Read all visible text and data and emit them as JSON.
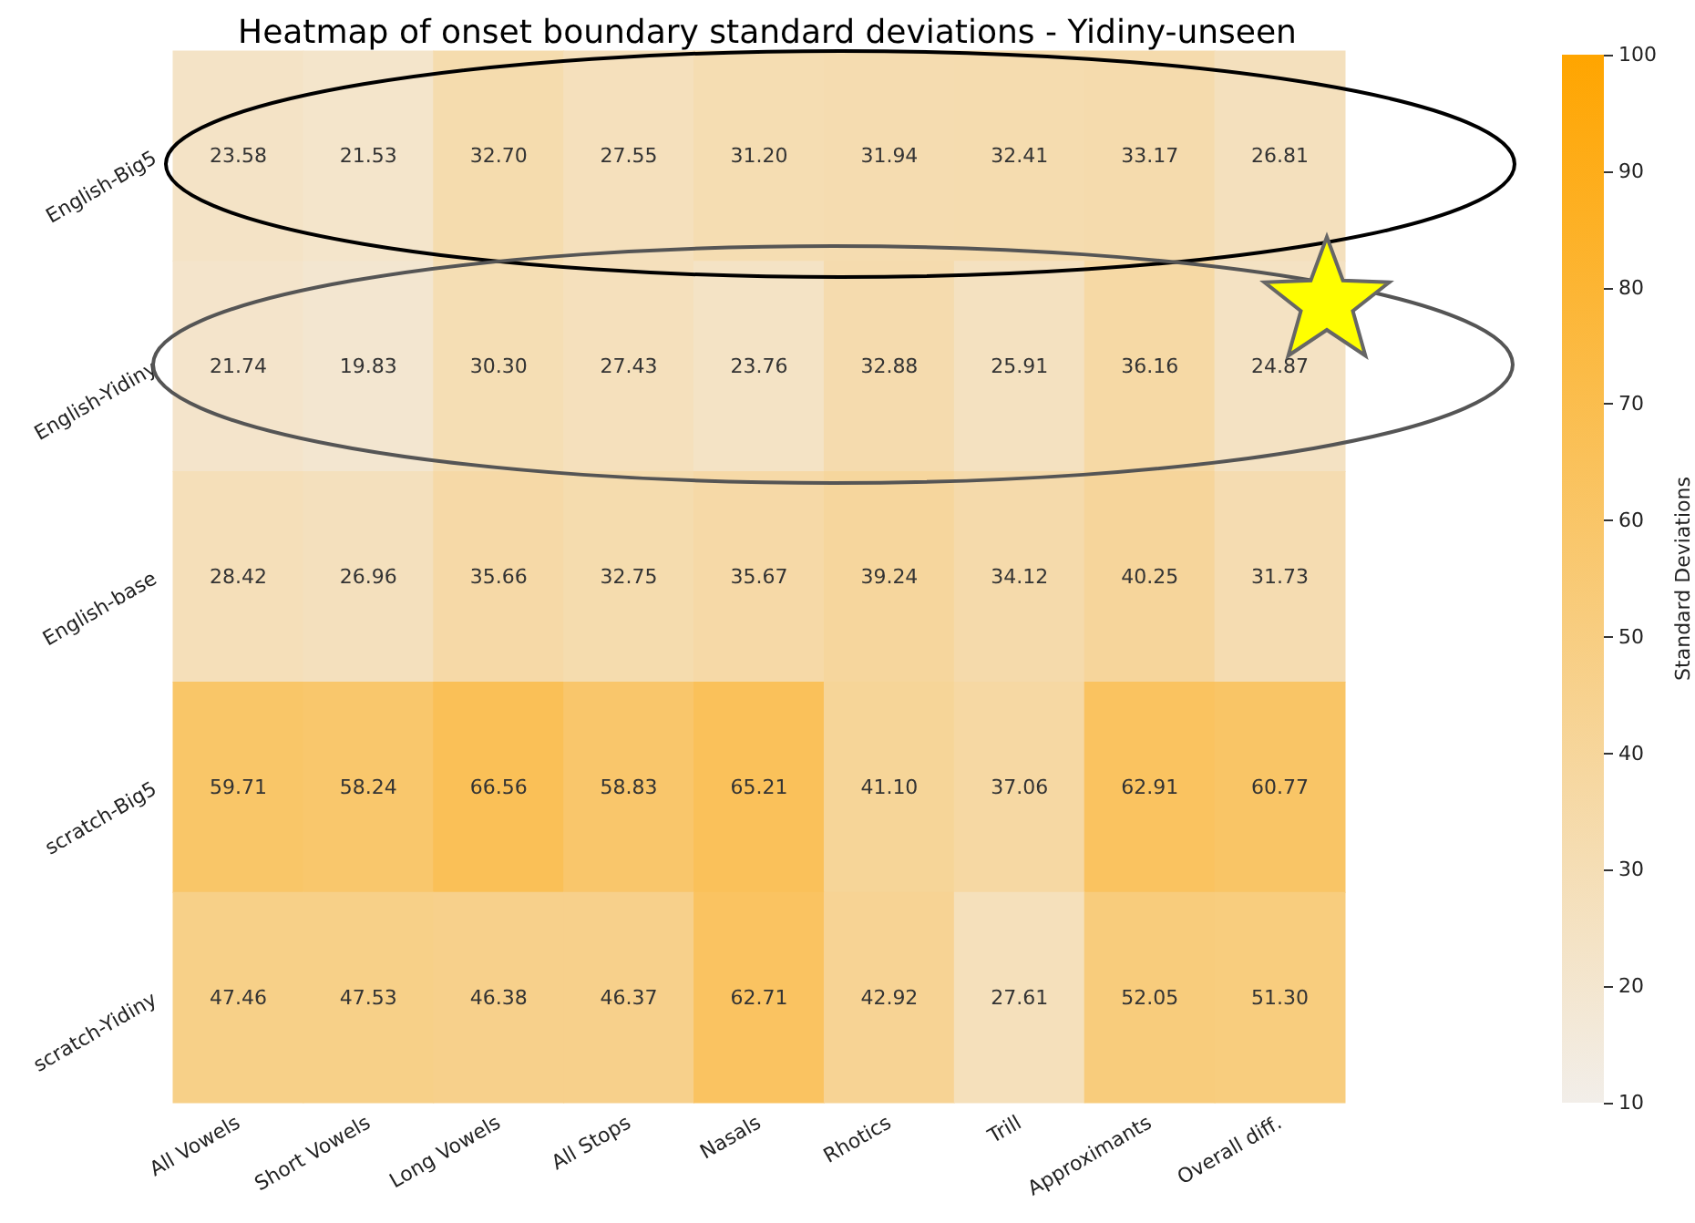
{
  "chart_data": {
    "type": "heatmap",
    "title": "Heatmap of onset boundary standard deviations - Yidiny-unseen",
    "clabel": "Standard Deviations",
    "categories": [
      "All Vowels",
      "Short Vowels",
      "Long Vowels",
      "All Stops",
      "Nasals",
      "Rhotics",
      "Trill",
      "Approximants",
      "Overall diff."
    ],
    "y_categories": [
      "English-Big5",
      "English-Yidiny",
      "English-base",
      "scratch-Big5",
      "scratch-Yidiny"
    ],
    "cells": [
      [
        23.58,
        21.53,
        32.7,
        27.55,
        31.2,
        31.94,
        32.41,
        33.17,
        26.81
      ],
      [
        21.74,
        19.83,
        30.3,
        27.43,
        23.76,
        32.88,
        25.91,
        36.16,
        24.87
      ],
      [
        28.42,
        26.96,
        35.66,
        32.75,
        35.67,
        39.24,
        34.12,
        40.25,
        31.73
      ],
      [
        59.71,
        58.24,
        66.56,
        58.83,
        65.21,
        41.1,
        37.06,
        62.91,
        60.77
      ],
      [
        47.46,
        47.53,
        46.38,
        46.37,
        62.71,
        42.92,
        27.61,
        52.05,
        51.3
      ]
    ],
    "cell_labels": [
      [
        "23.58",
        "21.53",
        "32.70",
        "27.55",
        "31.20",
        "31.94",
        "32.41",
        "33.17",
        "26.81"
      ],
      [
        "21.74",
        "19.83",
        "30.30",
        "27.43",
        "23.76",
        "32.88",
        "25.91",
        "36.16",
        "24.87"
      ],
      [
        "28.42",
        "26.96",
        "35.66",
        "32.75",
        "35.67",
        "39.24",
        "34.12",
        "40.25",
        "31.73"
      ],
      [
        "59.71",
        "58.24",
        "66.56",
        "58.83",
        "65.21",
        "41.10",
        "37.06",
        "62.91",
        "60.77"
      ],
      [
        "47.46",
        "47.53",
        "46.38",
        "46.37",
        "62.71",
        "42.92",
        "27.61",
        "52.05",
        "51.30"
      ]
    ],
    "clim": [
      10,
      100
    ],
    "cticks": [
      10,
      20,
      30,
      40,
      50,
      60,
      70,
      80,
      90,
      100
    ]
  }
}
